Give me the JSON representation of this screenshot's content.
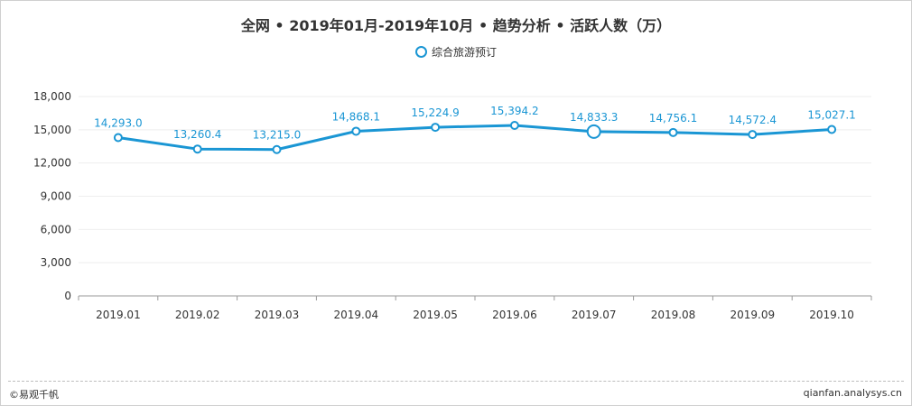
{
  "header": {
    "title": "全网 • 2019年01月-2019年10月 • 趋势分析 • 活跃人数（万）"
  },
  "legend": {
    "icon": "circle-icon",
    "label": "综合旅游预订"
  },
  "footer": {
    "brand": "©易观千帆",
    "site": "qianfan.analysys.cn"
  },
  "colors": {
    "series": "#1a96d4",
    "grid": "#eeeeee",
    "axis": "#999999",
    "text": "#333333",
    "label": "#1a96d4"
  },
  "chart_data": {
    "type": "line",
    "categories": [
      "2019.01",
      "2019.02",
      "2019.03",
      "2019.04",
      "2019.05",
      "2019.06",
      "2019.07",
      "2019.08",
      "2019.09",
      "2019.10"
    ],
    "series": [
      {
        "name": "综合旅游预订",
        "values": [
          14293.0,
          13260.4,
          13215.0,
          14868.1,
          15224.9,
          15394.2,
          14833.3,
          14756.1,
          14572.4,
          15027.1
        ],
        "labels": [
          "14,293.0",
          "13,260.4",
          "13,215.0",
          "14,868.1",
          "15,224.9",
          "15,394.2",
          "14,833.3",
          "14,756.1",
          "14,572.4",
          "15,027.1"
        ]
      }
    ],
    "yticks": [
      0,
      3000,
      6000,
      9000,
      12000,
      15000,
      18000
    ],
    "ytick_labels": [
      "0",
      "3,000",
      "6,000",
      "9,000",
      "12,000",
      "15,000",
      "18,000"
    ],
    "ylim": [
      0,
      18000
    ],
    "highlight_index": 6,
    "grid": true,
    "legend_position": "top-center"
  }
}
